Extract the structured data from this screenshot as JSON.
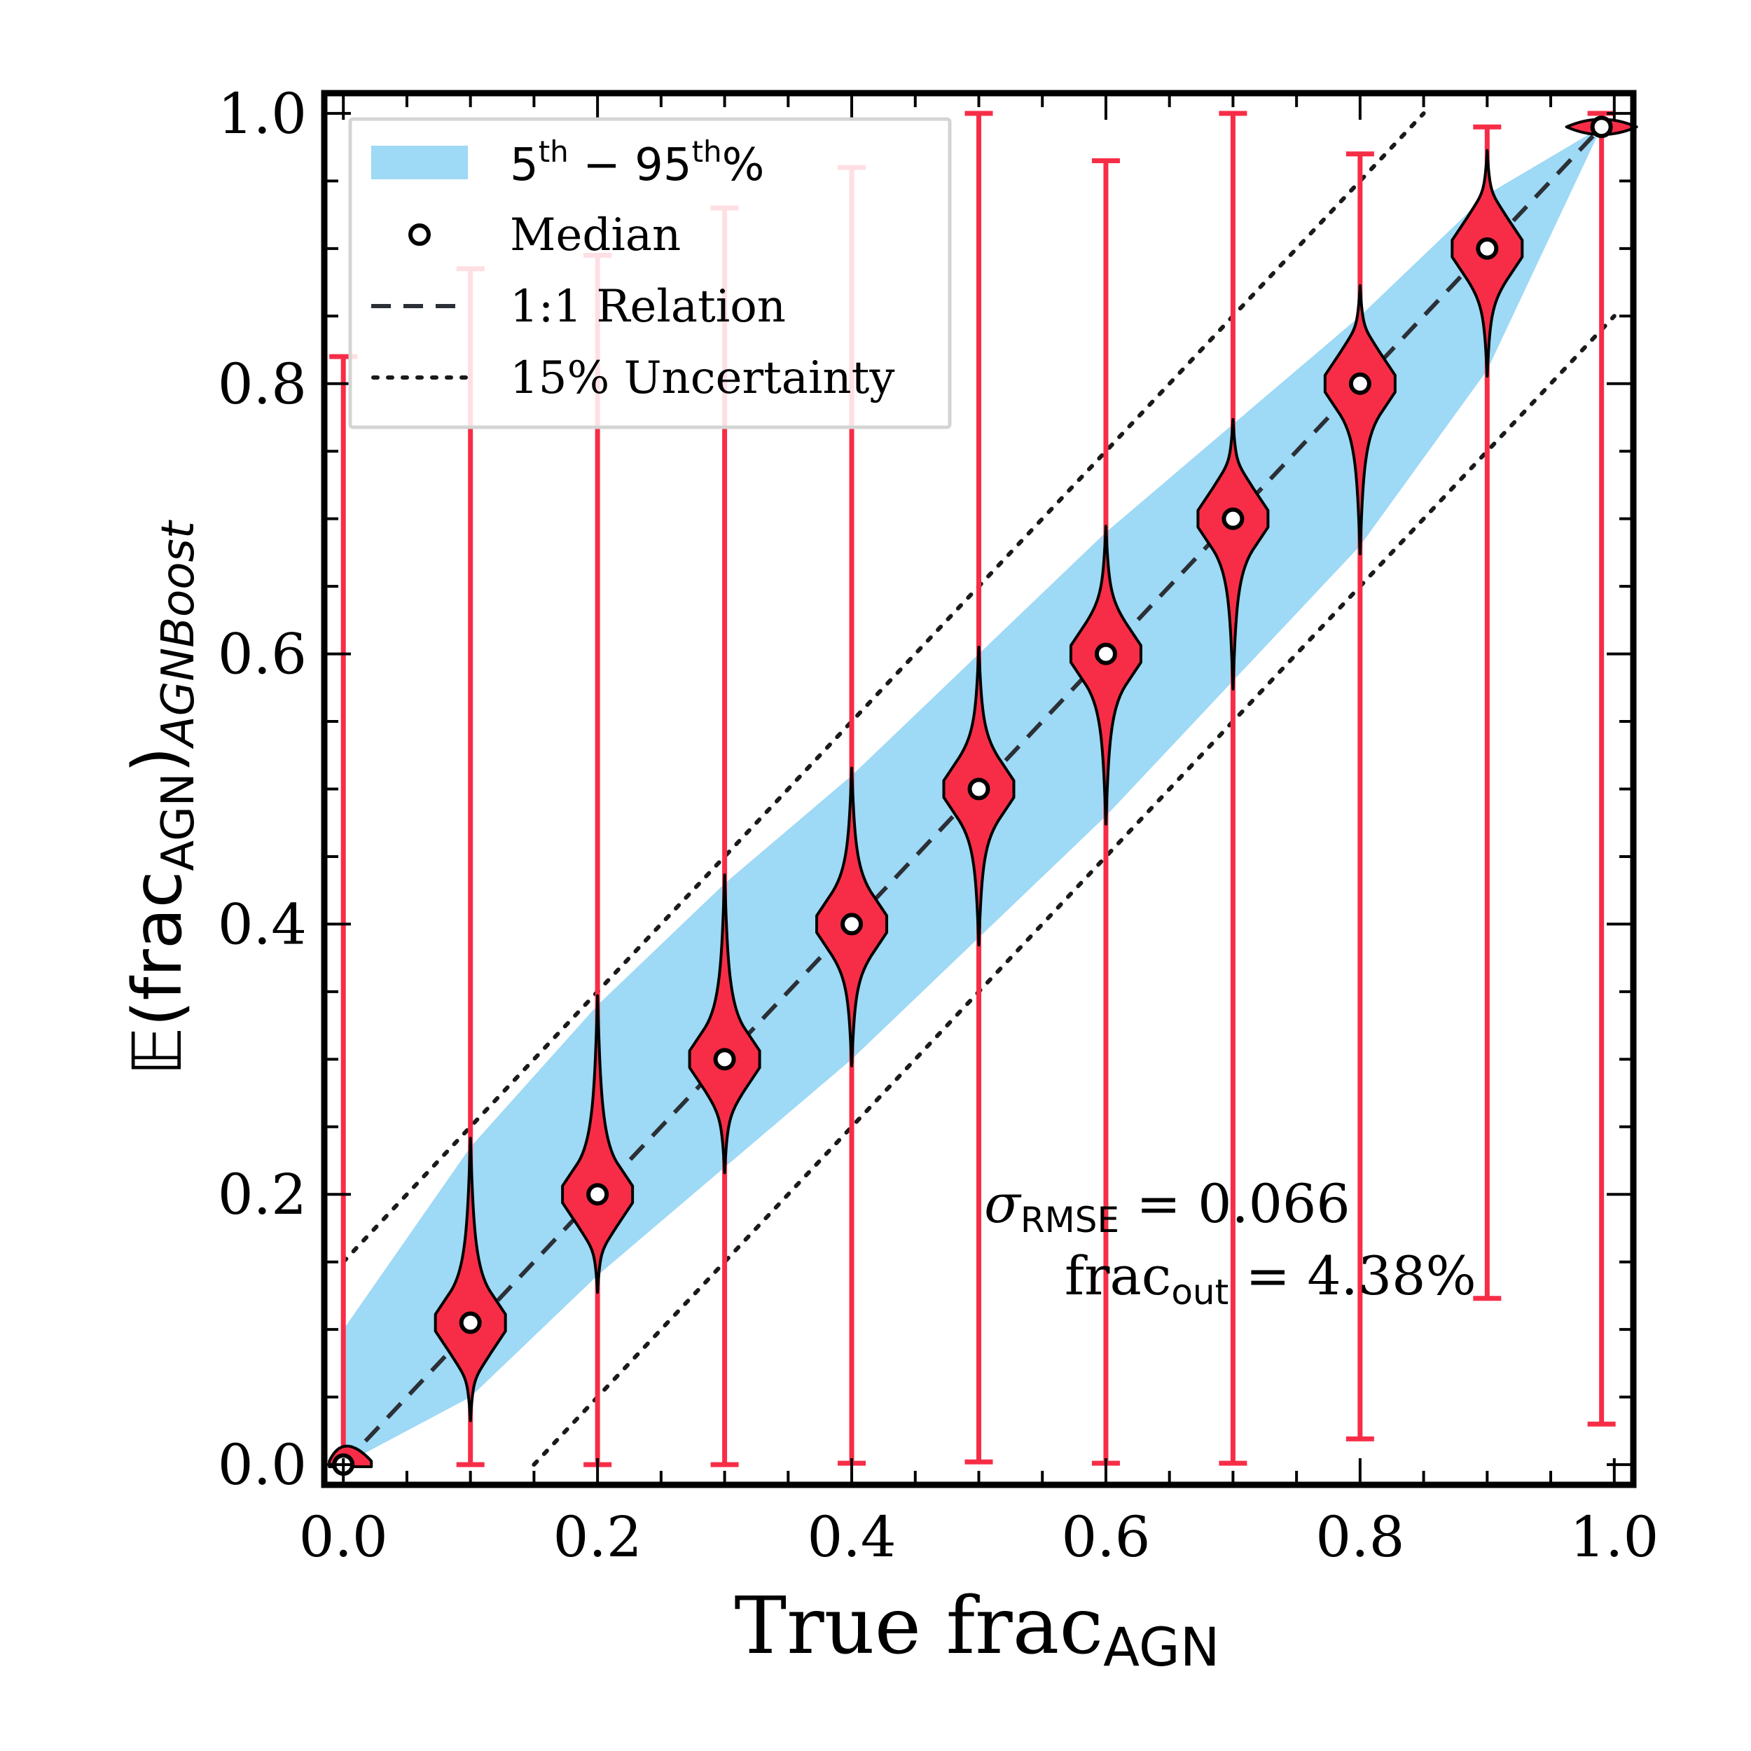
{
  "chart_data": {
    "type": "violin",
    "xlabel": {
      "main": "True frac",
      "sub": "AGN"
    },
    "ylabel": {
      "prefix": "𝔼(frac",
      "sub1": "AGN",
      "close": ")",
      "sub2": "AGNBoost"
    },
    "xlim": [
      -0.015,
      1.015
    ],
    "ylim": [
      -0.015,
      1.015
    ],
    "xticks": [
      0.0,
      0.2,
      0.4,
      0.6,
      0.8,
      1.0
    ],
    "yticks": [
      0.0,
      0.2,
      0.4,
      0.6,
      0.8,
      1.0
    ],
    "xtick_labels": [
      "0.0",
      "0.2",
      "0.4",
      "0.6",
      "0.8",
      "1.0"
    ],
    "ytick_labels": [
      "0.0",
      "0.2",
      "0.4",
      "0.6",
      "0.8",
      "1.0"
    ],
    "band_5_95": {
      "x": [
        0.0,
        0.1,
        0.2,
        0.3,
        0.4,
        0.5,
        0.6,
        0.7,
        0.8,
        0.9,
        0.99
      ],
      "low": [
        0.0,
        0.05,
        0.14,
        0.22,
        0.3,
        0.39,
        0.48,
        0.58,
        0.68,
        0.81,
        0.99
      ],
      "high": [
        0.1,
        0.235,
        0.34,
        0.43,
        0.51,
        0.6,
        0.69,
        0.77,
        0.85,
        0.94,
        0.99
      ]
    },
    "medians": {
      "x": [
        0.0,
        0.1,
        0.2,
        0.3,
        0.4,
        0.5,
        0.6,
        0.7,
        0.8,
        0.9,
        0.99
      ],
      "y": [
        0.0,
        0.105,
        0.2,
        0.3,
        0.4,
        0.5,
        0.6,
        0.7,
        0.8,
        0.9,
        0.99
      ]
    },
    "whiskers": {
      "x": [
        0.0,
        0.1,
        0.2,
        0.3,
        0.4,
        0.5,
        0.6,
        0.7,
        0.8,
        0.9,
        0.99
      ],
      "min": [
        0.0,
        0.0,
        0.0,
        0.0,
        0.001,
        0.002,
        0.001,
        0.001,
        0.019,
        0.123,
        0.03
      ],
      "max": [
        0.82,
        0.885,
        0.895,
        0.93,
        0.96,
        1.0,
        0.965,
        1.0,
        0.97,
        0.99,
        1.0
      ]
    },
    "one_to_one": [
      [
        0.0,
        0.0
      ],
      [
        0.99,
        0.99
      ]
    ],
    "uncertainty_offset": 0.15,
    "legend": {
      "position": "upper-left",
      "entries": [
        {
          "kind": "band",
          "label_parts": [
            "5",
            "th",
            " − 95",
            "th",
            "%"
          ]
        },
        {
          "kind": "median",
          "label": "Median"
        },
        {
          "kind": "dashed",
          "label": "1:1 Relation"
        },
        {
          "kind": "dotted",
          "label": "15% Uncertainty"
        }
      ]
    },
    "annotations": {
      "sigma_symbol": "σ",
      "sigma_sub": "RMSE",
      "sigma_value": " = 0.066",
      "frac_main": "frac",
      "frac_sub": "out",
      "frac_value": " = 4.38%"
    },
    "colors": {
      "band": "#9ed9f5",
      "violin": "#f72d47",
      "whisker": "#f72d47",
      "median_face": "#ffffff",
      "line": "#2b2f36",
      "axes": "#000000"
    }
  }
}
